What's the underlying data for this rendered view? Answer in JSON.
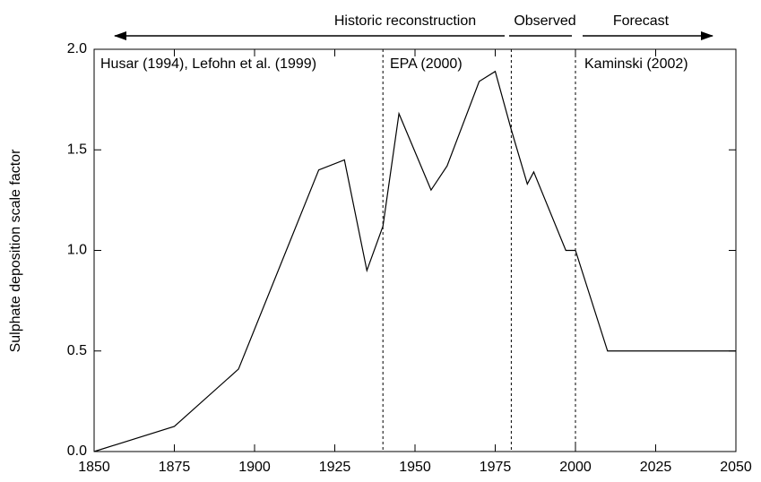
{
  "chart_data": {
    "type": "line",
    "y_label": "Sulphate deposition scale factor",
    "x": [
      1850,
      1875,
      1895,
      1920,
      1928,
      1935,
      1940,
      1945,
      1955,
      1960,
      1970,
      1975,
      1980,
      1985,
      1987,
      1997,
      2000,
      2010,
      2050
    ],
    "series": [
      {
        "color": "#000000",
        "values": [
          0.0,
          0.125,
          0.41,
          1.4,
          1.45,
          0.9,
          1.12,
          1.68,
          1.3,
          1.42,
          1.84,
          1.89,
          1.6,
          1.33,
          1.39,
          1.0,
          1.0,
          0.5,
          0.5
        ]
      }
    ],
    "xlim": [
      1850,
      2050
    ],
    "xticks": [
      1850,
      1875,
      1900,
      1925,
      1950,
      1975,
      2000,
      2025,
      2050
    ],
    "ylim": [
      0,
      2
    ],
    "yticks": [
      {
        "value": 0,
        "label": "0.0"
      },
      0.5,
      {
        "value": 1,
        "label": "1.0"
      },
      1.5,
      {
        "value": 2,
        "label": "2.0"
      }
    ],
    "vlines": [
      1940,
      1980,
      2000
    ],
    "annotations": [
      "Husar (1994), Lefohn et al. (1999)",
      "EPA (2000)",
      "Kaminski (2002)"
    ],
    "periods": [
      "Historic reconstruction",
      "Observed",
      "Forecast"
    ]
  }
}
